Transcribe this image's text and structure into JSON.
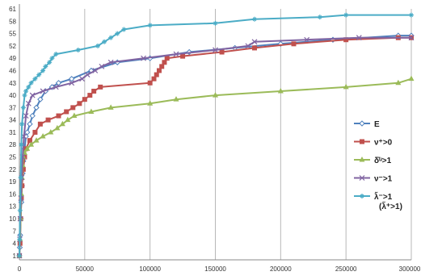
{
  "chart_data": {
    "type": "line",
    "title": "",
    "xlabel": "",
    "ylabel": "",
    "xlim": [
      0,
      300000
    ],
    "ylim": [
      0,
      61
    ],
    "grid": "vertical",
    "legend_position": "right",
    "x_ticks": [
      0,
      50000,
      100000,
      150000,
      200000,
      250000,
      300000
    ],
    "x_tick_labels": [
      "0",
      "50000",
      "100000",
      "150000",
      "200000",
      "250000",
      "300000"
    ],
    "y_ticks": [
      1,
      4,
      7,
      10,
      13,
      16,
      19,
      22,
      25,
      28,
      31,
      34,
      37,
      40,
      43,
      46,
      49,
      52,
      55,
      58,
      61
    ],
    "y_tick_labels": [
      "1",
      "4",
      "7",
      "10",
      "13",
      "16",
      "19",
      "22",
      "25",
      "28",
      "31",
      "34",
      "37",
      "40",
      "43",
      "46",
      "49",
      "52",
      "55",
      "58",
      "61"
    ],
    "series": [
      {
        "name": "E",
        "color": "#4f81bd",
        "marker": "diamond-open",
        "points": [
          [
            0,
            1
          ],
          [
            300,
            3
          ],
          [
            600,
            6
          ],
          [
            1000,
            10
          ],
          [
            1500,
            14
          ],
          [
            2000,
            18
          ],
          [
            2500,
            21
          ],
          [
            3000,
            24
          ],
          [
            4000,
            27
          ],
          [
            5000,
            30
          ],
          [
            6000,
            31
          ],
          [
            8000,
            33
          ],
          [
            10000,
            35
          ],
          [
            13000,
            37
          ],
          [
            16000,
            39
          ],
          [
            20000,
            41
          ],
          [
            25000,
            42
          ],
          [
            30000,
            43
          ],
          [
            40000,
            44
          ],
          [
            55000,
            46
          ],
          [
            75000,
            48
          ],
          [
            100000,
            49
          ],
          [
            130000,
            50.5
          ],
          [
            165000,
            51.5
          ],
          [
            200000,
            52.5
          ],
          [
            240000,
            53.5
          ],
          [
            290000,
            54.5
          ],
          [
            300000,
            54.5
          ]
        ]
      },
      {
        "name": "ν⁺>0",
        "color": "#c0504d",
        "marker": "square",
        "points": [
          [
            0,
            1
          ],
          [
            500,
            4
          ],
          [
            1000,
            10
          ],
          [
            1500,
            15
          ],
          [
            2000,
            18
          ],
          [
            3000,
            22
          ],
          [
            4000,
            25
          ],
          [
            5000,
            27
          ],
          [
            8000,
            29
          ],
          [
            12000,
            31
          ],
          [
            16000,
            33
          ],
          [
            22000,
            34
          ],
          [
            30000,
            35
          ],
          [
            36000,
            36
          ],
          [
            41000,
            37
          ],
          [
            46000,
            38
          ],
          [
            50000,
            39
          ],
          [
            54000,
            40
          ],
          [
            57000,
            41
          ],
          [
            62000,
            42
          ],
          [
            100000,
            43
          ],
          [
            103000,
            44
          ],
          [
            105000,
            45
          ],
          [
            107000,
            46
          ],
          [
            109000,
            47
          ],
          [
            111000,
            48
          ],
          [
            113000,
            49
          ],
          [
            125000,
            49.5
          ],
          [
            155000,
            50.5
          ],
          [
            180000,
            51.5
          ],
          [
            210000,
            52.5
          ],
          [
            250000,
            53.5
          ],
          [
            290000,
            54
          ],
          [
            300000,
            54
          ]
        ]
      },
      {
        "name": "δ̄ᵘ>1",
        "color": "#9bbb59",
        "marker": "triangle",
        "points": [
          [
            0,
            1
          ],
          [
            500,
            5
          ],
          [
            1000,
            10
          ],
          [
            1500,
            16
          ],
          [
            2000,
            20
          ],
          [
            2500,
            23
          ],
          [
            3000,
            25
          ],
          [
            4000,
            26
          ],
          [
            6000,
            27
          ],
          [
            9000,
            28
          ],
          [
            13000,
            29
          ],
          [
            18000,
            30
          ],
          [
            24000,
            31
          ],
          [
            29000,
            32
          ],
          [
            33000,
            33
          ],
          [
            37000,
            34
          ],
          [
            42000,
            35
          ],
          [
            55000,
            36
          ],
          [
            70000,
            37
          ],
          [
            100000,
            38
          ],
          [
            120000,
            39
          ],
          [
            150000,
            40
          ],
          [
            200000,
            41
          ],
          [
            250000,
            42
          ],
          [
            290000,
            43
          ],
          [
            300000,
            44
          ]
        ]
      },
      {
        "name": "ν⁻>1",
        "color": "#8064a2",
        "marker": "cross",
        "points": [
          [
            0,
            1
          ],
          [
            300,
            5
          ],
          [
            700,
            10
          ],
          [
            1200,
            15
          ],
          [
            1800,
            20
          ],
          [
            2500,
            25
          ],
          [
            3500,
            30
          ],
          [
            5000,
            35
          ],
          [
            7000,
            38
          ],
          [
            10000,
            40
          ],
          [
            18000,
            41
          ],
          [
            28000,
            42
          ],
          [
            40000,
            43
          ],
          [
            48000,
            44
          ],
          [
            52000,
            45
          ],
          [
            58000,
            46
          ],
          [
            63000,
            47
          ],
          [
            70000,
            48
          ],
          [
            95000,
            49
          ],
          [
            120000,
            50
          ],
          [
            150000,
            51
          ],
          [
            175000,
            52
          ],
          [
            180000,
            53
          ],
          [
            220000,
            53.5
          ],
          [
            260000,
            54
          ],
          [
            300000,
            54
          ]
        ]
      },
      {
        "name": "λ̃⁻>1 (λ̃⁺>1)",
        "color": "#4bacc6",
        "marker": "star",
        "points": [
          [
            0,
            1
          ],
          [
            200,
            5
          ],
          [
            500,
            12
          ],
          [
            1000,
            20
          ],
          [
            1500,
            28
          ],
          [
            2000,
            33
          ],
          [
            3000,
            37
          ],
          [
            4000,
            40
          ],
          [
            5000,
            41
          ],
          [
            7000,
            42
          ],
          [
            9000,
            43
          ],
          [
            12000,
            44
          ],
          [
            15000,
            45
          ],
          [
            18000,
            46
          ],
          [
            20000,
            47
          ],
          [
            23000,
            48
          ],
          [
            25000,
            49
          ],
          [
            28000,
            50
          ],
          [
            45000,
            51
          ],
          [
            60000,
            52
          ],
          [
            65000,
            53
          ],
          [
            70000,
            54
          ],
          [
            75000,
            55
          ],
          [
            80000,
            56
          ],
          [
            100000,
            57
          ],
          [
            150000,
            57.5
          ],
          [
            180000,
            58.5
          ],
          [
            230000,
            59
          ],
          [
            250000,
            59.5
          ],
          [
            300000,
            59.5
          ]
        ]
      }
    ],
    "legend": [
      {
        "label": "E",
        "color": "#4f81bd",
        "marker": "diamond-open"
      },
      {
        "label": "ν⁺>0",
        "color": "#c0504d",
        "marker": "square"
      },
      {
        "label": "δ̄ᵘ>1",
        "color": "#9bbb59",
        "marker": "triangle"
      },
      {
        "label": "ν⁻>1",
        "color": "#8064a2",
        "marker": "cross"
      },
      {
        "label": "λ̃⁻>1",
        "sublabel": "(λ̃⁺>1)",
        "color": "#4bacc6",
        "marker": "star"
      }
    ]
  }
}
